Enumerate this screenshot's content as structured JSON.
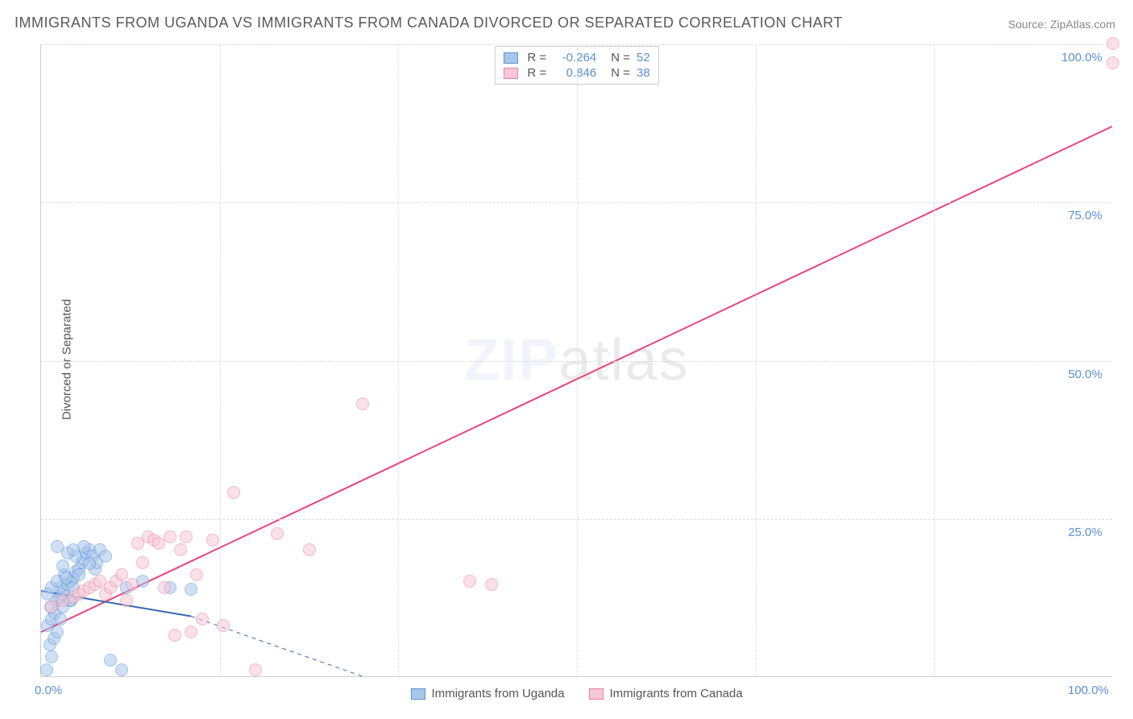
{
  "title": "IMMIGRANTS FROM UGANDA VS IMMIGRANTS FROM CANADA DIVORCED OR SEPARATED CORRELATION CHART",
  "source": "Source: ZipAtlas.com",
  "ylabel": "Divorced or Separated",
  "watermark_zip": "ZIP",
  "watermark_rest": "atlas",
  "chart": {
    "type": "scatter",
    "xlim": [
      0,
      100
    ],
    "ylim": [
      0,
      100
    ],
    "x_ticks": [
      0,
      100
    ],
    "x_tick_labels": [
      "0.0%",
      "100.0%"
    ],
    "x_minor_ticks": [
      16.67,
      33.33,
      50,
      66.67,
      83.33
    ],
    "y_ticks": [
      25,
      50,
      75,
      100
    ],
    "y_tick_labels": [
      "25.0%",
      "50.0%",
      "75.0%",
      "100.0%"
    ],
    "background_color": "#ffffff",
    "grid_color": "#dddddd",
    "axis_color": "#cccccc",
    "tick_label_color": "#5b8fd6",
    "marker_radius": 8,
    "marker_border_width": 1.2,
    "series": [
      {
        "name": "Immigrants from Uganda",
        "fill": "#a9c7ec",
        "stroke": "#5b8fd6",
        "fill_opacity": 0.55,
        "r": -0.264,
        "n": 52,
        "trend": {
          "x1": 0,
          "y1": 13.5,
          "x2": 14,
          "y2": 9.5,
          "solid_until_x": 14,
          "dash_to_x": 30,
          "dash_to_y": 0,
          "stroke": "#3a66b0",
          "width": 2
        },
        "points": [
          [
            0.5,
            1
          ],
          [
            1,
            3
          ],
          [
            0.8,
            5
          ],
          [
            1.2,
            6
          ],
          [
            1.5,
            7
          ],
          [
            0.6,
            8
          ],
          [
            1,
            9
          ],
          [
            1.3,
            10
          ],
          [
            0.9,
            11
          ],
          [
            1.5,
            12
          ],
          [
            1.8,
            12.5
          ],
          [
            2,
            13
          ],
          [
            2.2,
            13.5
          ],
          [
            1.7,
            14
          ],
          [
            2.5,
            14.5
          ],
          [
            2.8,
            15
          ],
          [
            3,
            15.5
          ],
          [
            2.2,
            16
          ],
          [
            3.2,
            16.5
          ],
          [
            3.5,
            17
          ],
          [
            2,
            17.5
          ],
          [
            3.8,
            18
          ],
          [
            4,
            18.5
          ],
          [
            3.2,
            19
          ],
          [
            4.2,
            19.5
          ],
          [
            4.5,
            20
          ],
          [
            3.5,
            16
          ],
          [
            4.8,
            19
          ],
          [
            5,
            17
          ],
          [
            2.5,
            19.5
          ],
          [
            5.2,
            18
          ],
          [
            5.5,
            20
          ],
          [
            1.5,
            20.5
          ],
          [
            4,
            20.5
          ],
          [
            4.5,
            17.8
          ],
          [
            3,
            20
          ],
          [
            6,
            19
          ],
          [
            2.8,
            12
          ],
          [
            1,
            14
          ],
          [
            1.5,
            15
          ],
          [
            2,
            11
          ],
          [
            1.8,
            9
          ],
          [
            0.6,
            13
          ],
          [
            3,
            14
          ],
          [
            2.7,
            12
          ],
          [
            2.3,
            15.6
          ],
          [
            6.5,
            2.5
          ],
          [
            7.5,
            1
          ],
          [
            8,
            14
          ],
          [
            9.5,
            15
          ],
          [
            12,
            14
          ],
          [
            14,
            13.8
          ]
        ]
      },
      {
        "name": "Immigrants from Canada",
        "fill": "#f6c7d4",
        "stroke": "#e87fa6",
        "fill_opacity": 0.55,
        "r": 0.846,
        "n": 38,
        "trend": {
          "x1": 0,
          "y1": 7,
          "x2": 100,
          "y2": 87,
          "stroke": "#e8447b",
          "width": 2
        },
        "points": [
          [
            1,
            11
          ],
          [
            2,
            12
          ],
          [
            3,
            12.5
          ],
          [
            3.5,
            13
          ],
          [
            4,
            13.5
          ],
          [
            4.5,
            14
          ],
          [
            5,
            14.5
          ],
          [
            5.5,
            15
          ],
          [
            6,
            13
          ],
          [
            6.5,
            14
          ],
          [
            7,
            15
          ],
          [
            7.5,
            16
          ],
          [
            8,
            12
          ],
          [
            8.5,
            14.5
          ],
          [
            9,
            21
          ],
          [
            9.5,
            18
          ],
          [
            10,
            22
          ],
          [
            10.5,
            21.5
          ],
          [
            11,
            21
          ],
          [
            11.5,
            14
          ],
          [
            12,
            22
          ],
          [
            12.5,
            6.5
          ],
          [
            13,
            20
          ],
          [
            13.5,
            22
          ],
          [
            14,
            7
          ],
          [
            14.5,
            16
          ],
          [
            15,
            9
          ],
          [
            16,
            21.5
          ],
          [
            17,
            8
          ],
          [
            18,
            29
          ],
          [
            20,
            1
          ],
          [
            22,
            22.5
          ],
          [
            25,
            20
          ],
          [
            30,
            43
          ],
          [
            40,
            15
          ],
          [
            42,
            14.5
          ],
          [
            100,
            100
          ],
          [
            100,
            97
          ]
        ]
      }
    ]
  },
  "legend_top": {
    "rows": [
      {
        "swatch_fill": "#a9c7ec",
        "swatch_stroke": "#5b8fd6",
        "r_label": "R =",
        "r_value": "-0.264",
        "n_label": "N =",
        "n_value": "52"
      },
      {
        "swatch_fill": "#f6c7d4",
        "swatch_stroke": "#e87fa6",
        "r_label": "R =",
        "r_value": "0.846",
        "n_label": "N =",
        "n_value": "38"
      }
    ]
  },
  "legend_bottom": {
    "items": [
      {
        "swatch_fill": "#a9c7ec",
        "swatch_stroke": "#5b8fd6",
        "label": "Immigrants from Uganda"
      },
      {
        "swatch_fill": "#f6c7d4",
        "swatch_stroke": "#e87fa6",
        "label": "Immigrants from Canada"
      }
    ]
  }
}
